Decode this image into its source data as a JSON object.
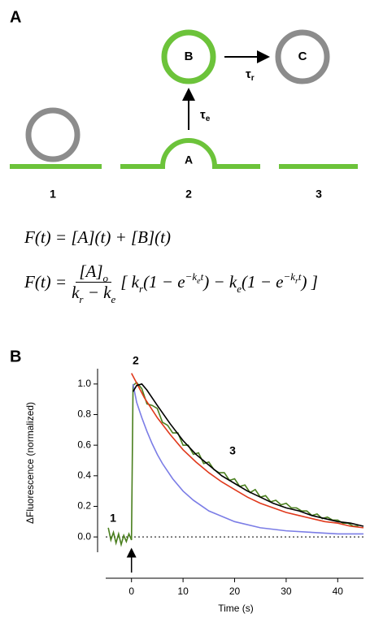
{
  "panel_a": {
    "label": "A",
    "states": [
      {
        "number": "1"
      },
      {
        "number": "2",
        "label": "A"
      },
      {
        "number": "3"
      }
    ],
    "vesicles": {
      "b": "B",
      "c": "C"
    },
    "tau_e": {
      "symbol": "τ",
      "sub": "e"
    },
    "tau_r": {
      "symbol": "τ",
      "sub": "r"
    },
    "equation_1": "F(t) = [A](t) + [B](t)",
    "equation_2": {
      "lhs": "F(t) =",
      "numerator": "[A]",
      "numerator_sub": "o",
      "denominator": [
        "k",
        "r",
        " − k",
        "e"
      ],
      "rhs": [
        "[ k",
        "r",
        "(1 − e",
        "−k",
        "e",
        "t",
        ") − k",
        "e",
        "(1 − e",
        "−k",
        "r",
        "t",
        ") ]"
      ]
    }
  },
  "chart_data": {
    "type": "line",
    "panel_label": "B",
    "x_label": "Time (s)",
    "y_label": "ΔFluorescence (normalized)",
    "xlim": [
      -5,
      45
    ],
    "xticks": [
      0,
      10,
      20,
      30,
      40
    ],
    "ylim": [
      -0.1,
      1.1
    ],
    "yticks": [
      {
        "value": 0,
        "label": "0.0"
      },
      0.2,
      0.4,
      0.6,
      0.8,
      {
        "value": 1,
        "label": "1.0"
      }
    ],
    "annotations": [
      "1",
      "2",
      "3"
    ],
    "series": [
      {
        "color": "#4a7f1e",
        "x": [
          -4.5,
          -4,
          -3.5,
          -3,
          -2.5,
          -2,
          -1.5,
          -1,
          -0.5,
          0,
          0.3,
          1,
          2,
          3,
          4,
          5,
          6,
          7,
          8,
          9,
          10,
          11,
          12,
          13,
          14,
          15,
          16,
          17,
          18,
          19,
          20,
          21,
          22,
          23,
          24,
          25,
          26,
          27,
          28,
          29,
          30,
          31,
          32,
          33,
          34,
          35,
          36,
          37,
          38,
          39,
          40,
          41,
          42,
          43,
          44
        ],
        "values": [
          0.06,
          -0.02,
          0.03,
          -0.04,
          0.02,
          -0.05,
          0.01,
          -0.03,
          0.02,
          -0.02,
          0.99,
          1.01,
          0.97,
          0.87,
          0.86,
          0.84,
          0.75,
          0.73,
          0.68,
          0.68,
          0.6,
          0.6,
          0.54,
          0.55,
          0.48,
          0.49,
          0.44,
          0.42,
          0.42,
          0.37,
          0.38,
          0.33,
          0.34,
          0.29,
          0.31,
          0.26,
          0.27,
          0.23,
          0.24,
          0.21,
          0.22,
          0.19,
          0.19,
          0.17,
          0.17,
          0.14,
          0.15,
          0.12,
          0.13,
          0.11,
          0.11,
          0.09,
          0.09,
          0.07,
          0.07
        ]
      },
      {
        "color": "#7b7de6",
        "x": [
          0.3,
          1,
          2,
          3,
          4,
          5,
          6,
          8,
          10,
          12,
          15,
          20,
          25,
          30,
          35,
          40,
          45
        ],
        "values": [
          1.0,
          0.88,
          0.78,
          0.69,
          0.61,
          0.54,
          0.48,
          0.38,
          0.3,
          0.24,
          0.17,
          0.1,
          0.06,
          0.04,
          0.03,
          0.02,
          0.02
        ]
      },
      {
        "color": "#e0391c",
        "x": [
          0,
          2.5,
          5,
          7.5,
          10,
          12.5,
          15,
          17.5,
          20,
          22.5,
          25,
          27.5,
          30,
          32.5,
          35,
          37.5,
          40,
          42.5,
          45
        ],
        "values": [
          1.07,
          0.91,
          0.78,
          0.67,
          0.57,
          0.49,
          0.42,
          0.36,
          0.31,
          0.26,
          0.22,
          0.19,
          0.16,
          0.14,
          0.12,
          0.1,
          0.09,
          0.07,
          0.06
        ]
      },
      {
        "color": "#000000",
        "x": [
          0.3,
          1,
          2,
          3,
          5,
          7.5,
          10,
          12.5,
          15,
          17.5,
          20,
          22.5,
          25,
          27.5,
          30,
          32.5,
          35,
          37.5,
          40,
          42.5,
          45
        ],
        "values": [
          0.95,
          0.99,
          1.0,
          0.96,
          0.86,
          0.74,
          0.63,
          0.54,
          0.47,
          0.4,
          0.35,
          0.3,
          0.26,
          0.22,
          0.19,
          0.17,
          0.14,
          0.12,
          0.1,
          0.09,
          0.07
        ]
      }
    ]
  }
}
